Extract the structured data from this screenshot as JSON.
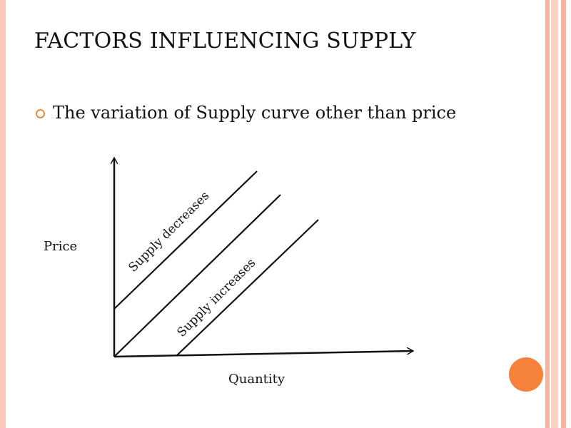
{
  "slide": {
    "title": "FACTORS INFLUENCING SUPPLY",
    "bullet": "The variation of Supply curve other than price"
  },
  "diagram": {
    "y_axis_label": "Price",
    "x_axis_label": "Quantity",
    "curves": [
      {
        "label": "Supply decreases"
      },
      {
        "label": ""
      },
      {
        "label": "Supply increases"
      }
    ]
  },
  "colors": {
    "accent": "#f0883e",
    "circle": "#f5813a",
    "edge_stripes": [
      "#f4b6a0",
      "#f9d5c6",
      "#f4b6a0"
    ]
  }
}
